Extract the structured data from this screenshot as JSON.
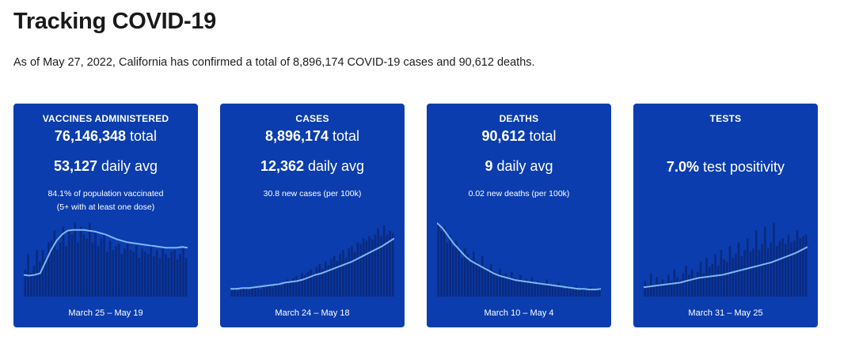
{
  "page": {
    "title": "Tracking COVID-19",
    "summary": "As of May 27, 2022, California has confirmed a total of 8,896,174 COVID-19 cases and 90,612 deaths."
  },
  "colors": {
    "card_bg": "#0b3dae",
    "bar": "#0a2a7e",
    "line": "#7fb7f0",
    "text": "#ffffff"
  },
  "cards": [
    {
      "title": "VACCINES ADMINISTERED",
      "total_value": "76,146,348",
      "total_unit": "total",
      "daily_value": "53,127",
      "daily_unit": "daily avg",
      "note_line1": "84.1% of population vaccinated",
      "note_line2": "(5+ with at least one dose)",
      "range": "March 25 – May 19"
    },
    {
      "title": "CASES",
      "total_value": "8,896,174",
      "total_unit": "total",
      "daily_value": "12,362",
      "daily_unit": "daily avg",
      "note_line1": "30.8 new cases (per 100k)",
      "range": "March 24 – May 18"
    },
    {
      "title": "DEATHS",
      "total_value": "90,612",
      "total_unit": "total",
      "daily_value": "9",
      "daily_unit": "daily avg",
      "note_line1": "0.02 new deaths (per 100k)",
      "range": "March 10 – May 4"
    },
    {
      "title": "TESTS",
      "daily_value": "7.0%",
      "daily_unit": "test positivity",
      "range": "March 31 – May 25"
    }
  ],
  "chart_data": [
    {
      "type": "bar",
      "name": "vaccines",
      "values": [
        0.35,
        0.55,
        0.3,
        0.4,
        0.6,
        0.45,
        0.6,
        0.5,
        0.7,
        0.72,
        0.85,
        0.6,
        0.7,
        0.9,
        0.65,
        0.85,
        0.8,
        0.95,
        0.7,
        0.9,
        0.8,
        0.75,
        0.95,
        0.7,
        0.82,
        0.65,
        0.75,
        0.8,
        0.58,
        0.72,
        0.6,
        0.65,
        0.68,
        0.55,
        0.62,
        0.7,
        0.6,
        0.58,
        0.66,
        0.5,
        0.62,
        0.58,
        0.55,
        0.68,
        0.52,
        0.6,
        0.5,
        0.62,
        0.55,
        0.5,
        0.58,
        0.6,
        0.48,
        0.55,
        0.62,
        0.5
      ],
      "trend": [
        0.28,
        0.27,
        0.28,
        0.3,
        0.45,
        0.6,
        0.72,
        0.8,
        0.85,
        0.86,
        0.86,
        0.86,
        0.85,
        0.84,
        0.82,
        0.8,
        0.77,
        0.74,
        0.72,
        0.7,
        0.69,
        0.68,
        0.67,
        0.66,
        0.65,
        0.64,
        0.63,
        0.63,
        0.63,
        0.64,
        0.63
      ]
    },
    {
      "type": "bar",
      "name": "cases",
      "values": [
        0.08,
        0.1,
        0.07,
        0.09,
        0.12,
        0.1,
        0.08,
        0.11,
        0.13,
        0.1,
        0.09,
        0.12,
        0.14,
        0.15,
        0.12,
        0.16,
        0.18,
        0.14,
        0.2,
        0.22,
        0.18,
        0.24,
        0.26,
        0.22,
        0.3,
        0.28,
        0.32,
        0.35,
        0.3,
        0.38,
        0.42,
        0.36,
        0.45,
        0.4,
        0.48,
        0.52,
        0.46,
        0.55,
        0.6,
        0.5,
        0.62,
        0.65,
        0.58,
        0.7,
        0.68,
        0.75,
        0.72,
        0.78,
        0.74,
        0.8,
        0.88,
        0.78,
        0.92,
        0.8,
        0.85,
        0.82
      ],
      "trend": [
        0.1,
        0.1,
        0.11,
        0.11,
        0.12,
        0.13,
        0.14,
        0.15,
        0.16,
        0.18,
        0.19,
        0.2,
        0.22,
        0.25,
        0.28,
        0.3,
        0.33,
        0.36,
        0.39,
        0.42,
        0.45,
        0.49,
        0.53,
        0.57,
        0.61,
        0.65,
        0.7,
        0.75
      ]
    },
    {
      "type": "bar",
      "name": "deaths",
      "values": [
        0.95,
        0.85,
        0.9,
        0.7,
        0.8,
        0.65,
        0.72,
        0.6,
        0.5,
        0.62,
        0.55,
        0.48,
        0.58,
        0.45,
        0.4,
        0.52,
        0.38,
        0.35,
        0.42,
        0.32,
        0.3,
        0.36,
        0.28,
        0.3,
        0.25,
        0.32,
        0.24,
        0.22,
        0.28,
        0.2,
        0.22,
        0.18,
        0.25,
        0.16,
        0.2,
        0.18,
        0.14,
        0.22,
        0.15,
        0.16,
        0.12,
        0.18,
        0.14,
        0.1,
        0.15,
        0.12,
        0.1,
        0.14,
        0.08,
        0.12,
        0.1,
        0.08,
        0.12,
        0.1,
        0.09,
        0.11
      ],
      "trend": [
        0.95,
        0.88,
        0.78,
        0.68,
        0.6,
        0.52,
        0.46,
        0.42,
        0.38,
        0.34,
        0.3,
        0.27,
        0.25,
        0.23,
        0.21,
        0.2,
        0.19,
        0.18,
        0.17,
        0.16,
        0.15,
        0.14,
        0.13,
        0.12,
        0.11,
        0.1,
        0.1,
        0.09,
        0.09,
        0.1
      ]
    },
    {
      "type": "bar",
      "name": "tests",
      "values": [
        0.2,
        0.15,
        0.3,
        0.12,
        0.25,
        0.18,
        0.22,
        0.15,
        0.28,
        0.2,
        0.35,
        0.25,
        0.22,
        0.3,
        0.4,
        0.28,
        0.35,
        0.25,
        0.32,
        0.45,
        0.3,
        0.5,
        0.38,
        0.42,
        0.55,
        0.4,
        0.6,
        0.48,
        0.45,
        0.65,
        0.5,
        0.55,
        0.7,
        0.52,
        0.6,
        0.75,
        0.58,
        0.62,
        0.85,
        0.6,
        0.68,
        0.9,
        0.62,
        0.7,
        0.95,
        0.65,
        0.72,
        0.75,
        0.68,
        0.8,
        0.7,
        0.72,
        0.85,
        0.75,
        0.78,
        0.8
      ],
      "trend": [
        0.12,
        0.13,
        0.14,
        0.15,
        0.16,
        0.17,
        0.18,
        0.2,
        0.22,
        0.24,
        0.25,
        0.26,
        0.27,
        0.28,
        0.3,
        0.32,
        0.34,
        0.36,
        0.38,
        0.4,
        0.42,
        0.44,
        0.47,
        0.5,
        0.53,
        0.56,
        0.6,
        0.64
      ]
    }
  ]
}
